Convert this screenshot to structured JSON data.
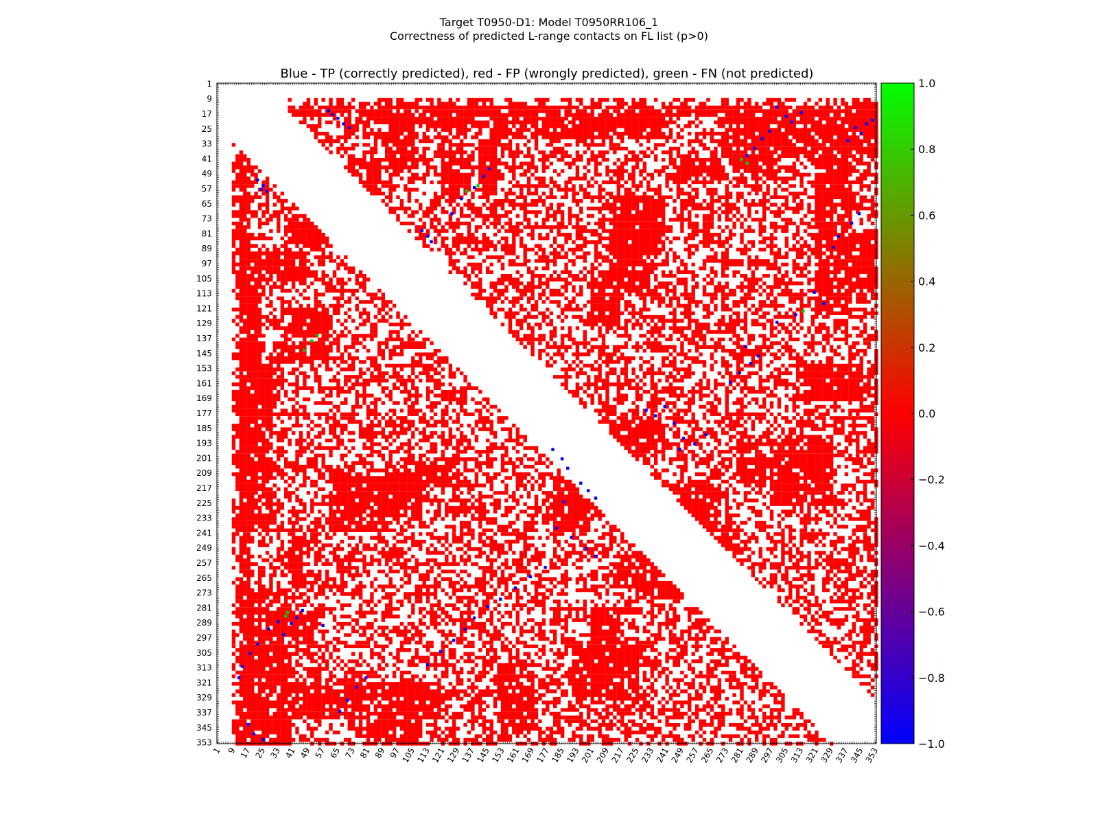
{
  "figure": {
    "suptitle_line1": "Target T0950-D1: Model T0950RR106_1",
    "suptitle_line2": "Correctness of predicted L-range contacts on FL list (p>0)"
  },
  "chart_data": {
    "type": "heatmap",
    "title": "Blue - TP (correctly predicted), red - FP (wrongly predicted), green - FN (not predicted)",
    "xlabel": "",
    "ylabel": "",
    "xlim": [
      1,
      353
    ],
    "ylim": [
      353,
      1
    ],
    "tick_labels": [
      "1",
      "9",
      "17",
      "25",
      "33",
      "41",
      "49",
      "57",
      "65",
      "73",
      "81",
      "89",
      "97",
      "105",
      "113",
      "121",
      "129",
      "137",
      "145",
      "153",
      "161",
      "169",
      "177",
      "185",
      "193",
      "201",
      "209",
      "217",
      "225",
      "233",
      "241",
      "249",
      "257",
      "265",
      "273",
      "281",
      "289",
      "297",
      "305",
      "313",
      "321",
      "329",
      "337",
      "345",
      "353"
    ],
    "excluded_diagonal_band": 24,
    "cell_values": {
      "TP": -1.0,
      "FP": 0.0,
      "FN": 1.0
    },
    "colorbar": {
      "vmin": -1.0,
      "vmax": 1.0,
      "tick_labels": [
        "1.0",
        "0.8",
        "0.6",
        "0.4",
        "0.2",
        "0.0",
        "−0.2",
        "−0.4",
        "−0.6",
        "−0.8",
        "−1.0"
      ],
      "colors": [
        "#0000ff",
        "#ff0000",
        "#00ff00"
      ]
    },
    "tp_contacts": [
      [
        60,
        15
      ],
      [
        62,
        17
      ],
      [
        65,
        19
      ],
      [
        68,
        22
      ],
      [
        71,
        24
      ],
      [
        22,
        52
      ],
      [
        25,
        55
      ],
      [
        27,
        58
      ],
      [
        24,
        57
      ],
      [
        110,
        79
      ],
      [
        113,
        82
      ],
      [
        115,
        85
      ],
      [
        126,
        70
      ],
      [
        131,
        62
      ],
      [
        138,
        56
      ],
      [
        143,
        50
      ],
      [
        146,
        46
      ],
      [
        300,
        13
      ],
      [
        305,
        18
      ],
      [
        308,
        21
      ],
      [
        313,
        16
      ],
      [
        296,
        26
      ],
      [
        292,
        30
      ],
      [
        288,
        35
      ],
      [
        284,
        39
      ],
      [
        342,
        24
      ],
      [
        345,
        27
      ],
      [
        348,
        22
      ],
      [
        338,
        31
      ],
      [
        351,
        20
      ],
      [
        230,
        175
      ],
      [
        235,
        178
      ],
      [
        240,
        173
      ],
      [
        245,
        182
      ],
      [
        250,
        190
      ],
      [
        256,
        193
      ],
      [
        262,
        188
      ],
      [
        248,
        196
      ],
      [
        275,
        160
      ],
      [
        280,
        155
      ],
      [
        286,
        150
      ],
      [
        290,
        146
      ],
      [
        283,
        141
      ],
      [
        300,
        128
      ],
      [
        310,
        124
      ],
      [
        325,
        118
      ],
      [
        320,
        112
      ],
      [
        330,
        88
      ],
      [
        333,
        82
      ],
      [
        340,
        75
      ],
      [
        344,
        70
      ],
      [
        180,
        196
      ],
      [
        185,
        201
      ],
      [
        188,
        206
      ],
      [
        195,
        214
      ],
      [
        199,
        218
      ],
      [
        186,
        224
      ],
      [
        203,
        222
      ],
      [
        182,
        238
      ],
      [
        190,
        243
      ],
      [
        198,
        249
      ],
      [
        203,
        253
      ],
      [
        176,
        259
      ],
      [
        168,
        264
      ],
      [
        160,
        270
      ],
      [
        152,
        276
      ],
      [
        145,
        280
      ],
      [
        138,
        286
      ],
      [
        133,
        292
      ],
      [
        127,
        298
      ],
      [
        120,
        304
      ],
      [
        113,
        311
      ],
      [
        80,
        318
      ],
      [
        75,
        323
      ],
      [
        70,
        330
      ],
      [
        66,
        336
      ],
      [
        36,
        295
      ],
      [
        33,
        288
      ],
      [
        28,
        292
      ],
      [
        22,
        300
      ],
      [
        18,
        305
      ],
      [
        14,
        312
      ],
      [
        12,
        318
      ],
      [
        17,
        343
      ],
      [
        20,
        348
      ],
      [
        25,
        351
      ],
      [
        43,
        286
      ],
      [
        46,
        282
      ],
      [
        40,
        289
      ],
      [
        57,
        290
      ]
    ],
    "fn_contacts": [
      [
        54,
        135
      ],
      [
        51,
        138
      ],
      [
        47,
        143
      ],
      [
        37,
        285
      ],
      [
        38,
        283
      ],
      [
        281,
        41
      ],
      [
        284,
        43
      ],
      [
        140,
        55
      ],
      [
        134,
        58
      ],
      [
        314,
        122
      ]
    ],
    "fp_regions": [
      [
        12,
        18,
        38,
        353
      ],
      [
        12,
        24,
        90,
        150
      ],
      [
        12,
        30,
        150,
        240
      ],
      [
        12,
        40,
        270,
        353
      ],
      [
        40,
        60,
        120,
        135
      ],
      [
        70,
        88,
        40,
        60
      ],
      [
        90,
        105,
        20,
        48
      ],
      [
        140,
        150,
        30,
        60
      ],
      [
        180,
        200,
        210,
        240
      ],
      [
        230,
        250,
        255,
        275
      ],
      [
        280,
        300,
        25,
        45
      ],
      [
        320,
        340,
        20,
        120
      ],
      [
        300,
        330,
        190,
        225
      ],
      [
        210,
        232,
        60,
        110
      ],
      [
        60,
        90,
        210,
        240
      ],
      [
        100,
        130,
        200,
        215
      ],
      [
        40,
        50,
        245,
        270
      ],
      [
        28,
        48,
        285,
        300
      ],
      [
        80,
        110,
        320,
        353
      ],
      [
        250,
        270,
        215,
        250
      ],
      [
        330,
        353,
        10,
        30
      ],
      [
        310,
        330,
        150,
        170
      ],
      [
        150,
        170,
        320,
        345
      ],
      [
        200,
        215,
        280,
        305
      ]
    ]
  }
}
